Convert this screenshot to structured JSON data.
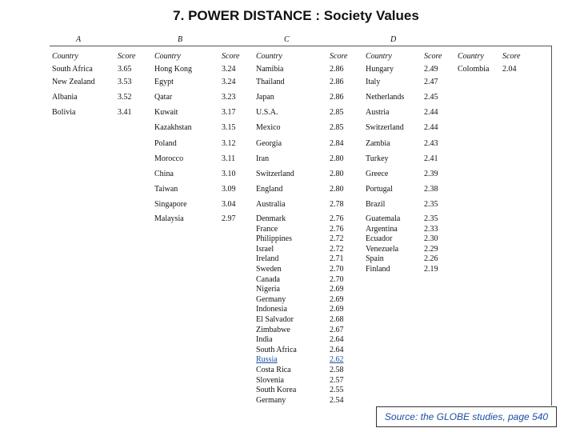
{
  "title": "7. POWER DISTANCE : Society Values",
  "column_headers": [
    "Country",
    "Score"
  ],
  "groups": [
    {
      "label": "A",
      "rows": [
        [
          "South Africa",
          "3.65"
        ],
        [
          "New Zealand",
          "3.53"
        ],
        [
          "Albania",
          "3.52"
        ],
        [
          "Bolivia",
          "3.41"
        ]
      ]
    },
    {
      "label": "B",
      "rows": [
        [
          "Hong Kong",
          "3.24"
        ],
        [
          "Egypt",
          "3.24"
        ],
        [
          "Qatar",
          "3.23"
        ],
        [
          "Kuwait",
          "3.17"
        ],
        [
          "Kazakhstan",
          "3.15"
        ],
        [
          "Poland",
          "3.12"
        ],
        [
          "Morocco",
          "3.11"
        ],
        [
          "China",
          "3.10"
        ],
        [
          "Taiwan",
          "3.09"
        ],
        [
          "Singapore",
          "3.04"
        ],
        [
          "Malaysia",
          "2.97"
        ]
      ]
    },
    {
      "label": "C",
      "rows": [
        [
          "Namibia",
          "2.86"
        ],
        [
          "Thailand",
          "2.86"
        ],
        [
          "Japan",
          "2.86"
        ],
        [
          "U.S.A.",
          "2.85"
        ],
        [
          "Mexico",
          "2.85"
        ],
        [
          "Georgia",
          "2.84"
        ],
        [
          "Iran",
          "2.80"
        ],
        [
          "Switzerland",
          "2.80"
        ],
        [
          "England",
          "2.80"
        ],
        [
          "Australia",
          "2.78"
        ],
        [
          "Denmark",
          "2.76"
        ],
        [
          "France",
          "2.76"
        ],
        [
          "Philippines",
          "2.72"
        ],
        [
          "Israel",
          "2.72"
        ],
        [
          "Ireland",
          "2.71"
        ],
        [
          "Sweden",
          "2.70"
        ],
        [
          "Canada",
          "2.70"
        ],
        [
          "Nigeria",
          "2.69"
        ],
        [
          "Germany",
          "2.69"
        ],
        [
          "Indonesia",
          "2.69"
        ],
        [
          "El Salvador",
          "2.68"
        ],
        [
          "Zimbabwe",
          "2.67"
        ],
        [
          "India",
          "2.64"
        ],
        [
          "South Africa",
          "2.64"
        ],
        [
          "Russia",
          "2.62"
        ],
        [
          "Costa Rica",
          "2.58"
        ],
        [
          "Slovenia",
          "2.57"
        ],
        [
          "South Korea",
          "2.55"
        ],
        [
          "Germany",
          "2.54"
        ]
      ]
    },
    {
      "label": "D",
      "rows": [
        [
          "Hungary",
          "2.49"
        ],
        [
          "Italy",
          "2.47"
        ],
        [
          "Netherlands",
          "2.45"
        ],
        [
          "Austria",
          "2.44"
        ],
        [
          "Switzerland",
          "2.44"
        ],
        [
          "Zambia",
          "2.43"
        ],
        [
          "Turkey",
          "2.41"
        ],
        [
          "Greece",
          "2.39"
        ],
        [
          "Portugal",
          "2.38"
        ],
        [
          "Brazil",
          "2.35"
        ],
        [
          "Guatemala",
          "2.35"
        ],
        [
          "Argentina",
          "2.33"
        ],
        [
          "Ecuador",
          "2.30"
        ],
        [
          "Venezuela",
          "2.29"
        ],
        [
          "Spain",
          "2.26"
        ],
        [
          "Finland",
          "2.19"
        ]
      ]
    },
    {
      "label": null,
      "rows": [
        [
          "Colombia",
          "2.04"
        ]
      ]
    }
  ],
  "source": "Source: the GLOBE studies, page 540"
}
